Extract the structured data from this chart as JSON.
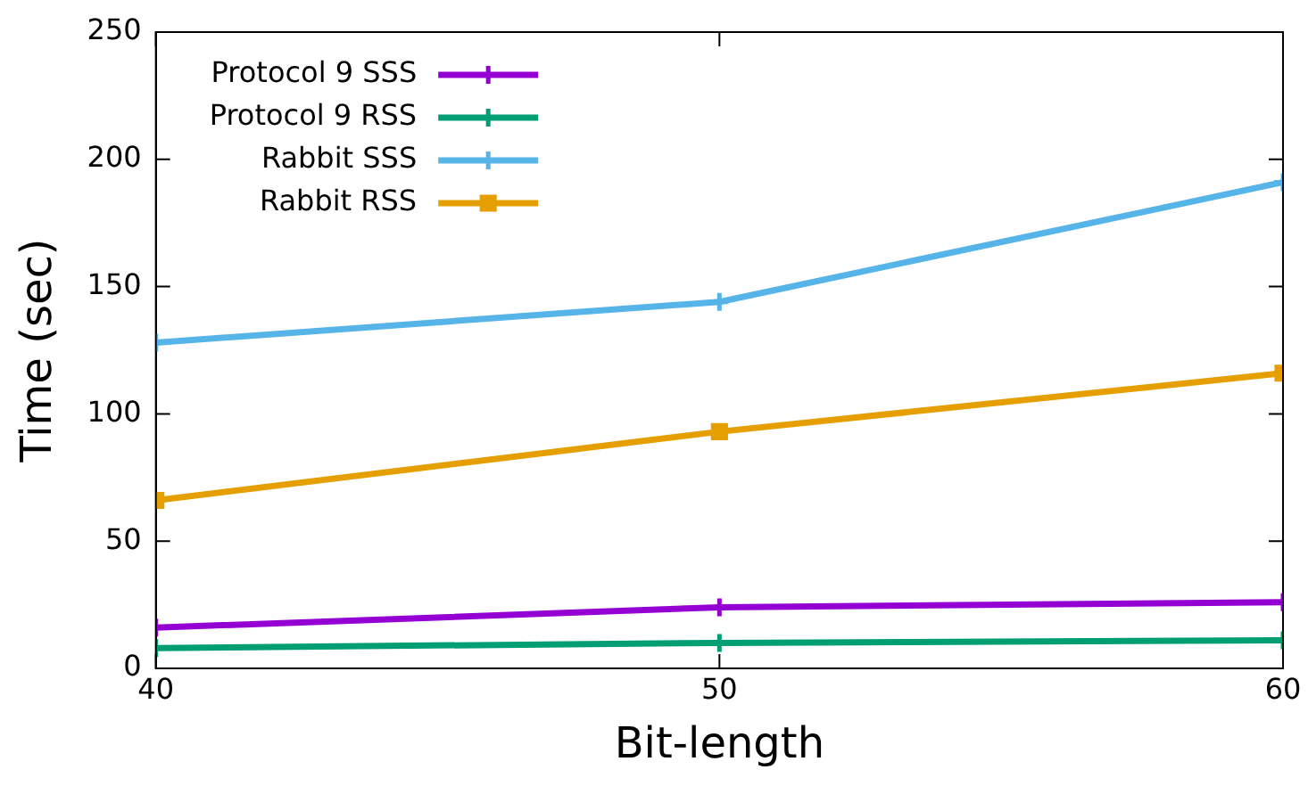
{
  "chart_data": {
    "type": "line",
    "xlabel": "Bit-length",
    "ylabel": "Time (sec)",
    "x": [
      40,
      50,
      60
    ],
    "xlim": [
      40,
      60
    ],
    "xticks": [
      40,
      50,
      60
    ],
    "ylim": [
      0,
      250
    ],
    "yticks": [
      0,
      50,
      100,
      150,
      200,
      250
    ],
    "grid": false,
    "legend": "top left",
    "line_style": "solid",
    "series": [
      {
        "name": "Protocol 9 SSS",
        "color": "#9400d3",
        "marker": "cross",
        "values": [
          16,
          24,
          26
        ]
      },
      {
        "name": "Protocol 9 RSS",
        "color": "#009e73",
        "marker": "cross",
        "values": [
          8,
          10,
          11
        ]
      },
      {
        "name": "Rabbit SSS",
        "color": "#56b4e9",
        "marker": "cross",
        "values": [
          128,
          144,
          191
        ]
      },
      {
        "name": "Rabbit RSS",
        "color": "#e69f00",
        "marker": "square",
        "values": [
          66,
          93,
          116
        ]
      }
    ]
  }
}
